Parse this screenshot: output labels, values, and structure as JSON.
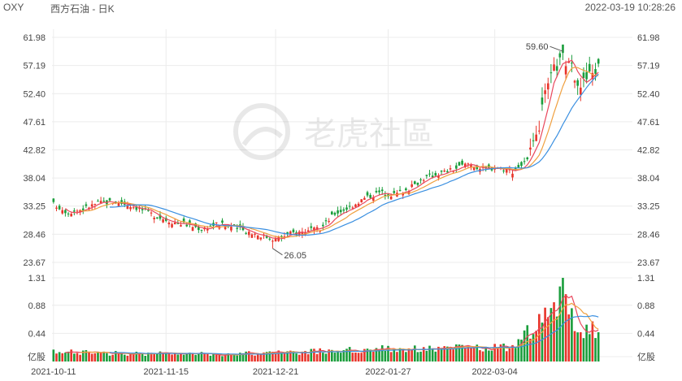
{
  "header": {
    "ticker": "OXY",
    "name": "西方石油 - 日K",
    "timestamp": "2022-03-19 10:28:26"
  },
  "watermark": {
    "text": "老虎社區",
    "icon": "tiger-logo-icon"
  },
  "colors": {
    "up": "#e8352b",
    "down": "#1a9e3c",
    "ma5": "#e9475c",
    "ma10": "#f0a040",
    "ma20": "#3a8fe0",
    "grid": "#ececec"
  },
  "chart_data": {
    "type": "candlestick",
    "price_axis": {
      "ticks": [
        "61.98",
        "57.19",
        "52.40",
        "47.61",
        "42.82",
        "38.04",
        "33.25",
        "28.46",
        "23.67"
      ],
      "ylim": [
        23.67,
        61.98
      ]
    },
    "volume_axis": {
      "ticks": [
        "1.31",
        "0.88",
        "0.44",
        "亿股"
      ],
      "ylim": [
        0,
        1.31
      ],
      "unit": "亿股"
    },
    "x_ticks": [
      "2021-10-11",
      "2021-11-15",
      "2021-12-21",
      "2022-01-27",
      "2022-03-04"
    ],
    "annotations": [
      {
        "label": "59.60",
        "kind": "high"
      },
      {
        "label": "26.05",
        "kind": "low"
      }
    ],
    "close_anchors": [
      [
        0,
        33.6
      ],
      [
        5,
        32.2
      ],
      [
        10,
        32.8
      ],
      [
        15,
        33.8
      ],
      [
        20,
        34.0
      ],
      [
        25,
        33.6
      ],
      [
        30,
        32.6
      ],
      [
        35,
        31.5
      ],
      [
        40,
        30.6
      ],
      [
        45,
        30.1
      ],
      [
        50,
        29.4
      ],
      [
        55,
        30.2
      ],
      [
        60,
        29.8
      ],
      [
        65,
        29.0
      ],
      [
        70,
        28.3
      ],
      [
        75,
        27.6
      ],
      [
        80,
        28.6
      ],
      [
        85,
        29.0
      ],
      [
        90,
        29.3
      ],
      [
        95,
        32.0
      ],
      [
        100,
        33.1
      ],
      [
        105,
        34.6
      ],
      [
        110,
        35.6
      ],
      [
        115,
        35.2
      ],
      [
        120,
        36.2
      ],
      [
        125,
        38.0
      ],
      [
        130,
        38.8
      ],
      [
        135,
        39.5
      ],
      [
        140,
        40.5
      ],
      [
        145,
        39.5
      ],
      [
        150,
        39.9
      ],
      [
        155,
        39.2
      ],
      [
        160,
        41.0
      ],
      [
        163,
        44.5
      ],
      [
        166,
        52.0
      ],
      [
        169,
        56.5
      ],
      [
        172,
        58.5
      ],
      [
        175,
        56.5
      ],
      [
        178,
        54.0
      ],
      [
        181,
        55.5
      ],
      [
        184,
        57.0
      ]
    ],
    "volume_anchors": [
      [
        0,
        0.15
      ],
      [
        20,
        0.13
      ],
      [
        40,
        0.12
      ],
      [
        60,
        0.12
      ],
      [
        80,
        0.14
      ],
      [
        95,
        0.17
      ],
      [
        110,
        0.2
      ],
      [
        125,
        0.2
      ],
      [
        140,
        0.21
      ],
      [
        155,
        0.22
      ],
      [
        160,
        0.45
      ],
      [
        163,
        0.6
      ],
      [
        166,
        0.85
      ],
      [
        168,
        0.65
      ],
      [
        170,
        0.8
      ],
      [
        172,
        1.31
      ],
      [
        174,
        0.8
      ],
      [
        176,
        0.65
      ],
      [
        178,
        0.55
      ],
      [
        180,
        0.45
      ],
      [
        182,
        0.6
      ],
      [
        184,
        0.4
      ]
    ],
    "num_candles": 185,
    "moving_averages": [
      {
        "key": "ma5",
        "period": 5
      },
      {
        "key": "ma10",
        "period": 10
      },
      {
        "key": "ma20",
        "period": 20
      }
    ],
    "grid": true
  }
}
